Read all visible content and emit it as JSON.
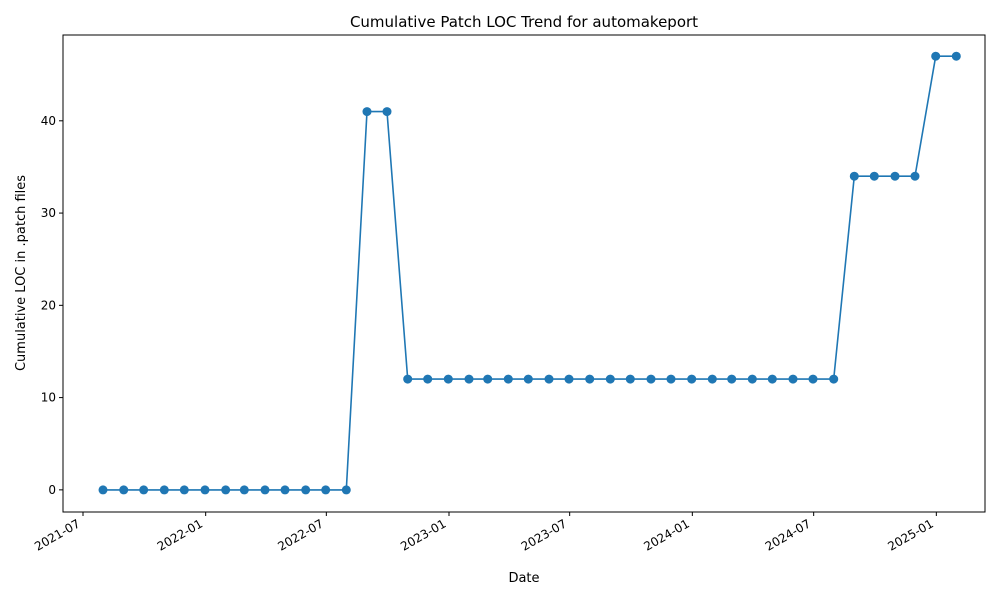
{
  "chart_data": {
    "type": "line",
    "title": "Cumulative Patch LOC Trend for automakeport",
    "xlabel": "Date",
    "ylabel": "Cumulative LOC in .patch files",
    "x_ticks": [
      "2021-07",
      "2022-01",
      "2022-07",
      "2023-01",
      "2023-07",
      "2024-01",
      "2024-07",
      "2025-01"
    ],
    "y_ticks": [
      0,
      10,
      20,
      30,
      40
    ],
    "xlim": [
      "2021-06-01",
      "2025-03-15"
    ],
    "ylim": [
      -2.4,
      49.3
    ],
    "grid": false,
    "line_color": "#1f77b4",
    "marker": "circle",
    "series": [
      {
        "x": [
          "2021-07-31",
          "2021-08-31",
          "2021-09-30",
          "2021-10-31",
          "2021-11-30",
          "2021-12-31",
          "2022-01-31",
          "2022-02-28",
          "2022-03-31",
          "2022-04-30",
          "2022-05-31",
          "2022-06-30",
          "2022-07-31",
          "2022-08-31",
          "2022-09-30",
          "2022-10-31",
          "2022-11-30",
          "2022-12-31",
          "2023-01-31",
          "2023-02-28",
          "2023-03-31",
          "2023-04-30",
          "2023-05-31",
          "2023-06-30",
          "2023-07-31",
          "2023-08-31",
          "2023-09-30",
          "2023-10-31",
          "2023-11-30",
          "2023-12-31",
          "2024-01-31",
          "2024-02-29",
          "2024-03-31",
          "2024-04-30",
          "2024-05-31",
          "2024-06-30",
          "2024-07-31",
          "2024-08-31",
          "2024-09-30",
          "2024-10-31",
          "2024-11-30",
          "2024-12-31",
          "2025-01-31"
        ],
        "y": [
          0,
          0,
          0,
          0,
          0,
          0,
          0,
          0,
          0,
          0,
          0,
          0,
          0,
          41,
          41,
          12,
          12,
          12,
          12,
          12,
          12,
          12,
          12,
          12,
          12,
          12,
          12,
          12,
          12,
          12,
          12,
          12,
          12,
          12,
          12,
          12,
          12,
          34,
          34,
          34,
          34,
          47,
          47
        ]
      }
    ]
  }
}
